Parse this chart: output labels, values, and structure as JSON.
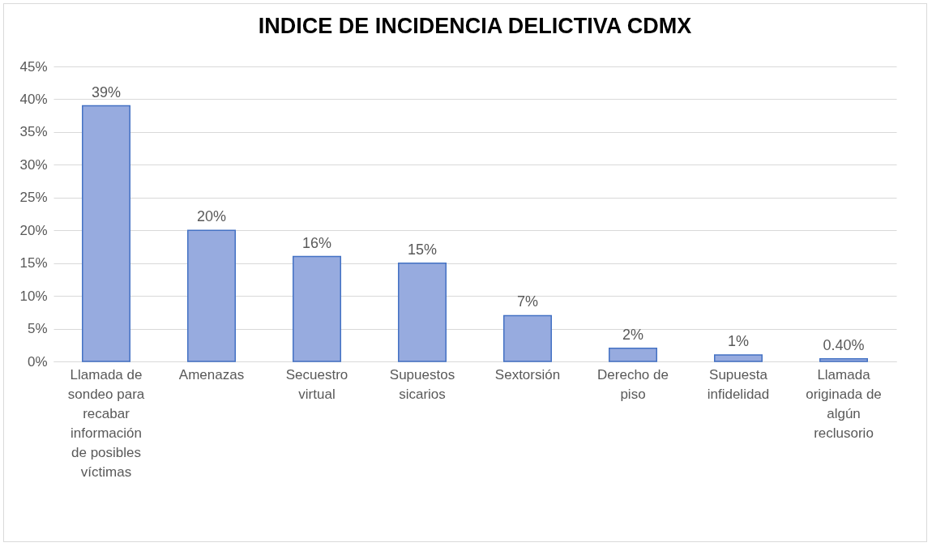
{
  "chart_data": {
    "type": "bar",
    "title": "INDICE DE INCIDENCIA DELICTIVA CDMX",
    "categories": [
      "Llamada de sondeo para recabar información de posibles víctimas",
      "Amenazas",
      "Secuestro virtual",
      "Supuestos sicarios",
      "Sextorsión",
      "Derecho de piso",
      "Supuesta infidelidad",
      "Llamada originada de algún reclusorio"
    ],
    "values": [
      39,
      20,
      16,
      15,
      7,
      2,
      1,
      0.4
    ],
    "value_labels": [
      "39%",
      "20%",
      "16%",
      "15%",
      "7%",
      "2%",
      "1%",
      "0.40%"
    ],
    "color": "#97abdf",
    "ylim": [
      0,
      45
    ],
    "yticks": [
      {
        "value": 0,
        "label": "0%"
      },
      {
        "value": 5,
        "label": "5%"
      },
      {
        "value": 10,
        "label": "10%"
      },
      {
        "value": 15,
        "label": "15%"
      },
      {
        "value": 20,
        "label": "20%"
      },
      {
        "value": 25,
        "label": "25%"
      },
      {
        "value": 30,
        "label": "30%"
      },
      {
        "value": 35,
        "label": "35%"
      },
      {
        "value": 40,
        "label": "40%"
      },
      {
        "value": 45,
        "label": "45%"
      }
    ],
    "grid": "y"
  }
}
